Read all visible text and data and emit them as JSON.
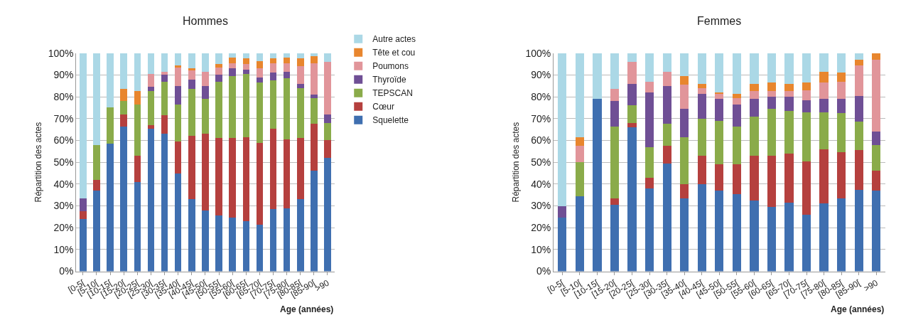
{
  "chart_data": [
    {
      "type": "bar",
      "stacked": true,
      "title": "Hommes",
      "xlabel": "Age (années)",
      "ylabel": "Répartition des actes",
      "legend": "right",
      "grid": "y",
      "categories": [
        "[0-5[",
        "[5-10[",
        "[10-15[",
        "[15-20[",
        "[20-25[",
        "[25-30[",
        "[30-35[",
        "[35-40[",
        "[40-45[",
        "[45-50[",
        "[50-55[",
        "[55-60[",
        "[60-65[",
        "[65-70[",
        "[70-75[",
        "[75-80[",
        "[80-85[",
        "[85-90[",
        ">90"
      ],
      "ylim": [
        0,
        100
      ],
      "yticks": [
        {
          "value": 0,
          "label": "0%"
        },
        {
          "value": 10,
          "label": "10%"
        },
        {
          "value": 20,
          "label": "20%"
        },
        {
          "value": 30,
          "label": "30%"
        },
        {
          "value": 40,
          "label": "40%"
        },
        {
          "value": 50,
          "label": "50%"
        },
        {
          "value": 60,
          "label": "60%"
        },
        {
          "value": 70,
          "label": "70%"
        },
        {
          "value": 80,
          "label": "80%"
        },
        {
          "value": 90,
          "label": "90%"
        },
        {
          "value": 100,
          "label": "100%"
        }
      ],
      "series": [
        {
          "name": "Squelette",
          "color": "#3f6fb0",
          "values": [
            24,
            37,
            58.5,
            66.5,
            41,
            65.5,
            63,
            45,
            33,
            28,
            25.5,
            24.5,
            23,
            21.5,
            28.5,
            29,
            33,
            46,
            52
          ]
        },
        {
          "name": "Cœur",
          "color": "#b5403e",
          "values": [
            3.5,
            5,
            0,
            5.5,
            12,
            1.5,
            8.5,
            14.5,
            29,
            35,
            35.5,
            36.5,
            38.5,
            37.5,
            37,
            31.5,
            28,
            21.5,
            8
          ]
        },
        {
          "name": "TEPSCAN",
          "color": "#8aab4a",
          "values": [
            0,
            16,
            16.5,
            6,
            23.5,
            15.5,
            15.5,
            17,
            21.5,
            16,
            26,
            28.5,
            29,
            27.5,
            22,
            28,
            23,
            12,
            8
          ]
        },
        {
          "name": "Thyroïde",
          "color": "#6f4f95",
          "values": [
            6,
            0,
            0,
            0,
            0,
            2,
            3,
            8.5,
            4.5,
            6,
            3,
            3.5,
            2,
            2.5,
            3.5,
            3,
            2,
            1.5,
            4
          ]
        },
        {
          "name": "Poumons",
          "color": "#e1959a",
          "values": [
            0,
            0,
            0,
            0,
            0,
            6,
            1.5,
            8.5,
            4,
            6.5,
            3.5,
            2.5,
            2.5,
            4,
            4.5,
            4,
            8,
            14.5,
            24
          ]
        },
        {
          "name": "Tête et cou",
          "color": "#e8862e",
          "values": [
            0,
            0,
            0,
            5.5,
            6,
            0,
            0,
            1,
            1,
            0,
            1.5,
            2.5,
            2.5,
            3.5,
            2,
            2.5,
            3.5,
            3,
            0
          ]
        },
        {
          "name": "Autre actes",
          "color": "#abd8e6",
          "values": [
            66.5,
            42,
            25,
            16.5,
            17.5,
            9.5,
            8.5,
            5.5,
            7,
            8.5,
            5,
            2,
            2.5,
            3.5,
            2.5,
            2,
            2.5,
            1.5,
            4
          ]
        }
      ]
    },
    {
      "type": "bar",
      "stacked": true,
      "title": "Femmes",
      "xlabel": "Age (années)",
      "ylabel": "Répartition des actes",
      "grid": "y",
      "categories": [
        "[0-5[",
        "[5-10[",
        "[10-15[",
        "[15-20[",
        "[20-25[",
        "[25-30[",
        "[30-35[",
        "[35-40[",
        "[40-45[",
        "[45-50[",
        "[50-55[",
        "[55-60[",
        "[60-65[",
        "[65-70[",
        "[70-75[",
        "[75-80[",
        "[80-85[",
        "[85-90[",
        ">90"
      ],
      "ylim": [
        0,
        100
      ],
      "yticks": [
        {
          "value": 0,
          "label": "0%"
        },
        {
          "value": 10,
          "label": "10%"
        },
        {
          "value": 20,
          "label": "20%"
        },
        {
          "value": 30,
          "label": "30%"
        },
        {
          "value": 40,
          "label": "40%"
        },
        {
          "value": 50,
          "label": "50%"
        },
        {
          "value": 60,
          "label": "60%"
        },
        {
          "value": 70,
          "label": "70%"
        },
        {
          "value": 80,
          "label": "80%"
        },
        {
          "value": 90,
          "label": "90%"
        },
        {
          "value": 100,
          "label": "100%"
        }
      ],
      "series": [
        {
          "color": "#3f6fb0",
          "values": [
            24.5,
            34.5,
            79,
            30.5,
            66,
            38,
            49.5,
            33.5,
            40,
            37,
            35.5,
            32.5,
            29.5,
            31.5,
            26,
            31,
            33.5,
            37.5,
            37
          ]
        },
        {
          "color": "#b5403e",
          "values": [
            0,
            0,
            0,
            3,
            2,
            5,
            8,
            6.5,
            13,
            12,
            13.5,
            20.5,
            23.5,
            22.5,
            24.5,
            25,
            21,
            18,
            9
          ]
        },
        {
          "color": "#8aab4a",
          "values": [
            0,
            15.5,
            0,
            33,
            8,
            14,
            10,
            21.5,
            17,
            20,
            17.5,
            18,
            21.5,
            19.5,
            22.5,
            17,
            18,
            13,
            12
          ]
        },
        {
          "color": "#6f4f95",
          "values": [
            5.5,
            0,
            0,
            11.5,
            10,
            25,
            17.5,
            13,
            11.5,
            10,
            10,
            8,
            5.5,
            6.5,
            5.5,
            6,
            6.5,
            12,
            6
          ]
        },
        {
          "color": "#e1959a",
          "values": [
            0,
            7.5,
            0,
            5.5,
            10,
            5,
            6.5,
            11,
            2.5,
            2.5,
            3,
            3.5,
            2.5,
            2.5,
            4.5,
            7.5,
            8,
            14,
            33
          ]
        },
        {
          "color": "#e8862e",
          "values": [
            0,
            4,
            0,
            0,
            0,
            0,
            0,
            4,
            2,
            0.5,
            2,
            3.5,
            4,
            3.5,
            3.5,
            5,
            4,
            2.5,
            3
          ]
        },
        {
          "color": "#abd8e6",
          "values": [
            70,
            38.5,
            21,
            16.5,
            4,
            13,
            8.5,
            10.5,
            14,
            18,
            18.5,
            14,
            13.5,
            14,
            13.5,
            8.5,
            9,
            3,
            0
          ]
        }
      ]
    }
  ]
}
